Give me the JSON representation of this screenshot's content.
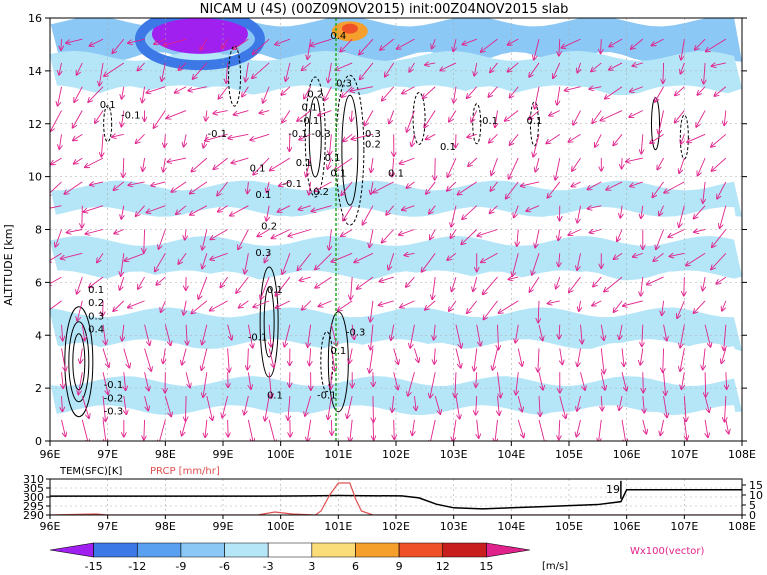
{
  "title": "NICAM U (4S) (00Z09NOV2015) init:00Z04NOV2015 slab",
  "colors": {
    "c_m15": "#a020f0",
    "c_m12": "#3c78e6",
    "c_m9": "#5aa0f0",
    "c_m6": "#8cc8f5",
    "c_m3": "#b4e6f8",
    "c_0": "#ffffff",
    "c_3": "#fadc78",
    "c_6": "#f5a02d",
    "c_9": "#f05028",
    "c_12": "#c81e1e",
    "c_15": "#e0228c",
    "vector": "#e0228c",
    "precip": "#e05050",
    "contour": "#000000",
    "mark": "#22aa22"
  },
  "chart_data": [
    {
      "type": "heatmap",
      "name": "U wind cross-section",
      "ylabel": "ALTITUDE [km]",
      "x_ticks": [
        "96E",
        "97E",
        "98E",
        "99E",
        "100E",
        "101E",
        "102E",
        "103E",
        "104E",
        "105E",
        "106E",
        "107E",
        "108E"
      ],
      "y_ticks": [
        "0",
        "2",
        "4",
        "6",
        "8",
        "10",
        "12",
        "14",
        "16"
      ],
      "xlim": [
        96,
        108
      ],
      "ylim": [
        0,
        16
      ],
      "colorbar": {
        "levels": [
          "-15",
          "-12",
          "-9",
          "-6",
          "-3",
          "3",
          "6",
          "9",
          "12",
          "15"
        ],
        "unit": "[m/s]"
      },
      "vector_label": "Wx100(vector)",
      "contour_labels": [
        "0.1",
        "0.2",
        "0.3",
        "0.4",
        "-0.1",
        "-0.2",
        "-0.3",
        "0.1",
        "0.2",
        "0.3",
        "0.1",
        "-0.1",
        "0.1",
        "0.2",
        "0.1",
        "-0.1",
        "-0.3",
        "0.1",
        "-0.1",
        "0.1",
        "0.1",
        "0.2",
        "0.3",
        "-0.1",
        "0.1",
        "-0.1",
        "-0.1",
        "0.1",
        "0.3",
        "0.2",
        "0.4",
        "0.1",
        "0.1",
        "-0.1",
        "0.1",
        "-0.3",
        "0.1",
        "-0.1"
      ],
      "bands": [
        {
          "y": 15.2,
          "value": -9
        },
        {
          "y": 13.9,
          "value": -6
        },
        {
          "y": 12.6,
          "value": -3
        },
        {
          "y": 11.2,
          "value": 0
        },
        {
          "y": 10.1,
          "value": -3
        },
        {
          "y": 9.0,
          "value": -6
        },
        {
          "y": 8.0,
          "value": -3
        },
        {
          "y": 6.9,
          "value": -6
        },
        {
          "y": 5.6,
          "value": -3
        },
        {
          "y": 4.2,
          "value": -6
        },
        {
          "y": 3.0,
          "value": -3
        },
        {
          "y": 1.6,
          "value": -6
        },
        {
          "y": 0.5,
          "value": -3
        }
      ]
    },
    {
      "type": "line",
      "name": "surface panel",
      "legend": [
        "TEM(SFC)[K]",
        "PRCP [mm/hr]"
      ],
      "left_ticks": [
        "310",
        "305",
        "300",
        "295",
        "290"
      ],
      "right_ticks": [
        "15",
        "10",
        "5",
        "0"
      ],
      "x_ticks": [
        "96E",
        "97E",
        "98E",
        "99E",
        "100E",
        "101E",
        "102E",
        "103E",
        "104E",
        "105E",
        "106E",
        "107E",
        "108E"
      ],
      "annotation": "19",
      "series": [
        {
          "name": "TEM(SFC)[K]",
          "x": [
            96,
            97,
            98,
            99,
            99.8,
            100.5,
            101,
            101.5,
            102.1,
            102.4,
            102.7,
            103,
            103.5,
            104,
            104.5,
            105,
            105.5,
            105.9,
            106,
            106.2,
            107,
            108
          ],
          "values": [
            300.5,
            300.5,
            300.5,
            300.5,
            300.5,
            300.6,
            300.8,
            300.7,
            300.6,
            299.5,
            296,
            294,
            293.4,
            294,
            294.6,
            295.2,
            295.8,
            297.4,
            304,
            304,
            304,
            304
          ]
        },
        {
          "name": "PRCP [mm/hr]",
          "x": [
            96,
            96.5,
            96.8,
            97,
            99,
            99.6,
            99.9,
            100.2,
            100.6,
            100.7,
            100.85,
            101,
            101.2,
            101.3,
            101.4,
            101.6,
            102,
            105,
            108
          ],
          "values": [
            0,
            0.3,
            0.5,
            0,
            0,
            0,
            1.5,
            0.5,
            0,
            2,
            10,
            16,
            16,
            8,
            2,
            0,
            0,
            0,
            0
          ]
        }
      ]
    }
  ]
}
